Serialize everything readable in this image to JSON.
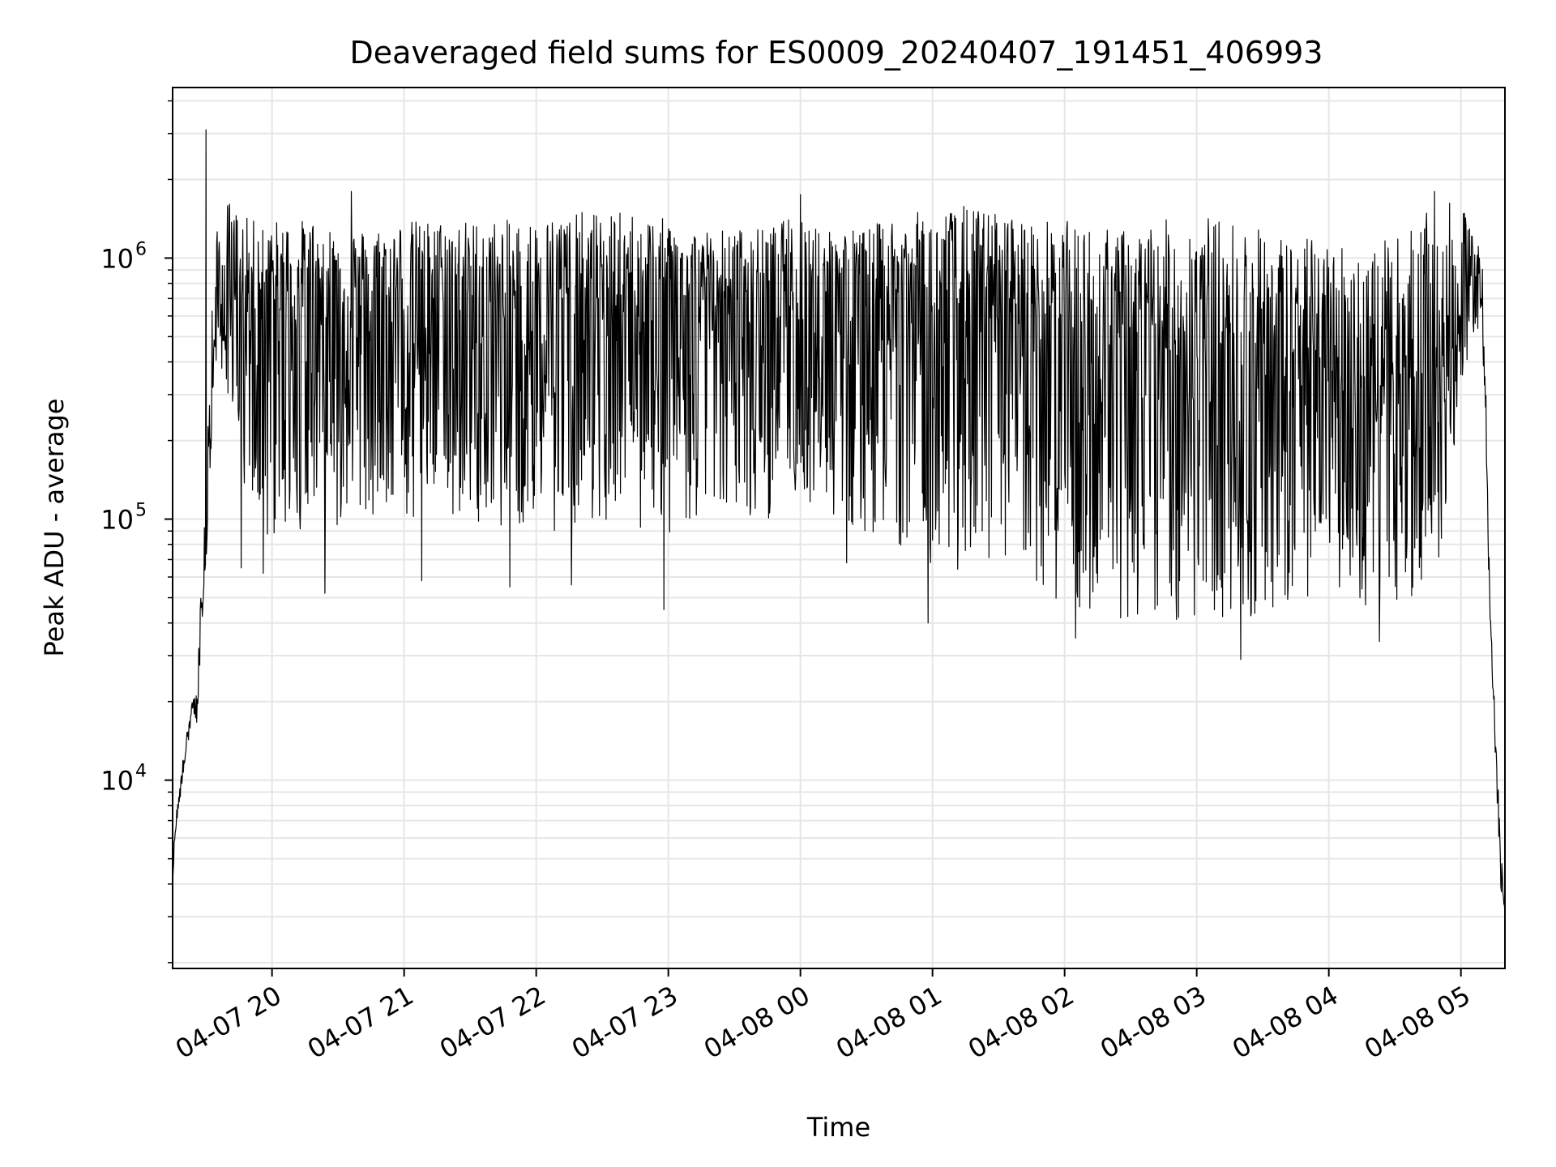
{
  "chart_data": {
    "type": "line",
    "title": "Deaveraged field sums for ES0009_20240407_191451_406993",
    "xlabel": "Time",
    "ylabel": "Peak ADU - average",
    "yscale": "log",
    "ylim": [
      1900,
      4500000
    ],
    "xlim": [
      "2024-04-07 19:14:51",
      "2024-04-08 05:20:00"
    ],
    "grid": true,
    "line_color": "#000000",
    "x_ticks": [
      {
        "value": "2024-04-07 20:00",
        "label": "04-07 20"
      },
      {
        "value": "2024-04-07 21:00",
        "label": "04-07 21"
      },
      {
        "value": "2024-04-07 22:00",
        "label": "04-07 22"
      },
      {
        "value": "2024-04-07 23:00",
        "label": "04-07 23"
      },
      {
        "value": "2024-04-08 00:00",
        "label": "04-08 00"
      },
      {
        "value": "2024-04-08 01:00",
        "label": "04-08 01"
      },
      {
        "value": "2024-04-08 02:00",
        "label": "04-08 02"
      },
      {
        "value": "2024-04-08 03:00",
        "label": "04-08 03"
      },
      {
        "value": "2024-04-08 04:00",
        "label": "04-08 04"
      },
      {
        "value": "2024-04-08 05:00",
        "label": "04-08 05"
      }
    ],
    "y_ticks": [
      {
        "value": 10000,
        "base": "10",
        "exp": "4"
      },
      {
        "value": 100000,
        "base": "10",
        "exp": "5"
      },
      {
        "value": 1000000,
        "base": "10",
        "exp": "6"
      }
    ],
    "envelope": {
      "time": [
        "2024-04-07 19:14:51",
        "2024-04-07 19:16",
        "2024-04-07 19:20",
        "2024-04-07 19:24",
        "2024-04-07 19:26",
        "2024-04-07 19:30",
        "2024-04-07 19:34",
        "2024-04-07 19:40",
        "2024-04-07 19:45",
        "2024-04-07 19:50",
        "2024-04-07 20:00",
        "2024-04-07 20:10",
        "2024-04-07 20:20",
        "2024-04-07 20:30",
        "2024-04-07 20:45",
        "2024-04-07 21:00",
        "2024-04-07 21:15",
        "2024-04-07 21:30",
        "2024-04-07 21:45",
        "2024-04-07 22:00",
        "2024-04-07 22:15",
        "2024-04-07 22:30",
        "2024-04-07 22:45",
        "2024-04-07 23:00",
        "2024-04-07 23:15",
        "2024-04-07 23:30",
        "2024-04-07 23:45",
        "2024-04-08 00:00",
        "2024-04-08 00:15",
        "2024-04-08 00:30",
        "2024-04-08 00:45",
        "2024-04-08 01:00",
        "2024-04-08 01:15",
        "2024-04-08 01:30",
        "2024-04-08 01:45",
        "2024-04-08 02:00",
        "2024-04-08 02:15",
        "2024-04-08 02:30",
        "2024-04-08 02:45",
        "2024-04-08 03:00",
        "2024-04-08 03:15",
        "2024-04-08 03:30",
        "2024-04-08 03:45",
        "2024-04-08 04:00",
        "2024-04-08 04:15",
        "2024-04-08 04:30",
        "2024-04-08 04:45",
        "2024-04-08 04:52",
        "2024-04-08 05:00",
        "2024-04-08 05:05",
        "2024-04-08 05:10",
        "2024-04-08 05:13",
        "2024-04-08 05:16",
        "2024-04-08 05:18",
        "2024-04-08 05:20"
      ],
      "base": [
        4000,
        6500,
        12000,
        20000,
        18000,
        80000,
        500000,
        700000,
        800000,
        800000,
        750000,
        700000,
        800000,
        700000,
        700000,
        700000,
        700000,
        700000,
        650000,
        700000,
        700000,
        700000,
        700000,
        700000,
        650000,
        750000,
        700000,
        800000,
        750000,
        750000,
        700000,
        700000,
        650000,
        700000,
        650000,
        600000,
        500000,
        450000,
        450000,
        450000,
        450000,
        450000,
        400000,
        400000,
        350000,
        350000,
        400000,
        400000,
        600000,
        900000,
        700000,
        50000,
        12000,
        5000,
        3000
      ],
      "hi": [
        4500,
        7000,
        13000,
        21000,
        22000,
        200000,
        1200000,
        1700000,
        1500000,
        1400000,
        1400000,
        1400000,
        1400000,
        1300000,
        1300000,
        1400000,
        1400000,
        1400000,
        1400000,
        1400000,
        1500000,
        1500000,
        1500000,
        1400000,
        1300000,
        1300000,
        1300000,
        1500000,
        1300000,
        1300000,
        1500000,
        1500000,
        1600000,
        1500000,
        1400000,
        1400000,
        1300000,
        1300000,
        1400000,
        1500000,
        1400000,
        1300000,
        1200000,
        1200000,
        1100000,
        1200000,
        1500000,
        1700000,
        1500000,
        1500000,
        1200000,
        60000,
        14000,
        6000,
        3500
      ],
      "lo": [
        4000,
        6000,
        11000,
        18000,
        16000,
        60000,
        400000,
        300000,
        100000,
        70000,
        80000,
        90000,
        90000,
        90000,
        100000,
        90000,
        100000,
        100000,
        90000,
        90000,
        90000,
        90000,
        90000,
        80000,
        100000,
        100000,
        100000,
        120000,
        90000,
        90000,
        80000,
        60000,
        60000,
        60000,
        50000,
        45000,
        40000,
        40000,
        40000,
        40000,
        40000,
        40000,
        40000,
        60000,
        45000,
        40000,
        50000,
        80000,
        300000,
        500000,
        400000,
        45000,
        10000,
        4000,
        2700
      ]
    },
    "spikes": [
      {
        "time": "2024-04-07 19:30",
        "value": 3100000
      },
      {
        "time": "2024-04-07 19:46",
        "value": 65000
      },
      {
        "time": "2024-04-07 19:56",
        "value": 62000
      },
      {
        "time": "2024-04-07 20:24",
        "value": 52000
      },
      {
        "time": "2024-04-07 20:36",
        "value": 1800000
      },
      {
        "time": "2024-04-07 21:08",
        "value": 58000
      },
      {
        "time": "2024-04-07 21:48",
        "value": 55000
      },
      {
        "time": "2024-04-07 22:16",
        "value": 56000
      },
      {
        "time": "2024-04-07 22:58",
        "value": 45000
      },
      {
        "time": "2024-04-08 00:00",
        "value": 1750000
      },
      {
        "time": "2024-04-08 00:21",
        "value": 68000
      },
      {
        "time": "2024-04-08 00:58",
        "value": 40000
      },
      {
        "time": "2024-04-08 02:05",
        "value": 35000
      },
      {
        "time": "2024-04-08 03:20",
        "value": 29000
      },
      {
        "time": "2024-04-08 04:23",
        "value": 34000
      },
      {
        "time": "2024-04-08 04:48",
        "value": 1800000
      }
    ]
  }
}
